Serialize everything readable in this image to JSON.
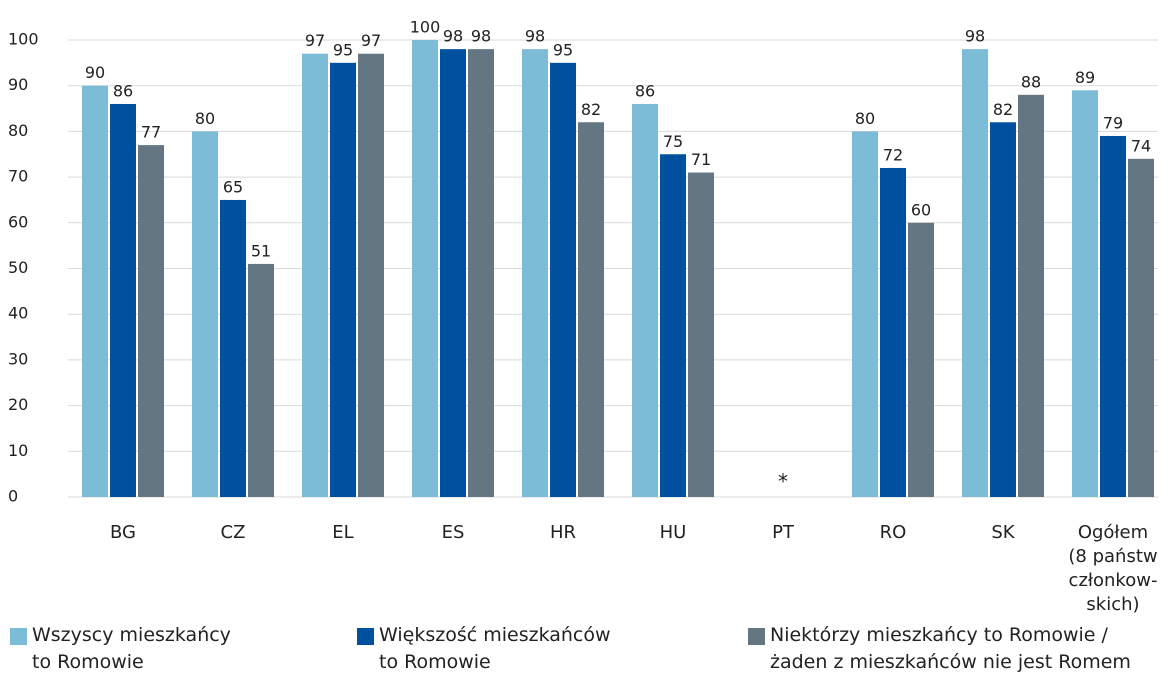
{
  "chart_data": {
    "type": "bar",
    "categories": [
      "BG",
      "CZ",
      "EL",
      "ES",
      "HR",
      "HU",
      "PT",
      "RO",
      "SK",
      "Ogółem\n(8 państw\nczłonkow-\nskich)"
    ],
    "series": [
      {
        "name": "Wszyscy mieszkańcy\nto Romowie",
        "color": "#7dbcd6",
        "values": [
          90,
          80,
          97,
          100,
          98,
          86,
          null,
          80,
          98,
          89
        ]
      },
      {
        "name": "Większość mieszkańców\nto Romowie",
        "color": "#0050a0",
        "values": [
          86,
          65,
          95,
          98,
          95,
          75,
          null,
          72,
          82,
          79
        ]
      },
      {
        "name": "Niektórzy mieszkańcy to Romowie /\nżaden z mieszkańców nie jest Romem",
        "color": "#647682",
        "values": [
          77,
          51,
          97,
          98,
          82,
          71,
          null,
          60,
          88,
          74
        ]
      }
    ],
    "annotations": [
      {
        "category": "PT",
        "text": "*"
      }
    ],
    "ylim": [
      0,
      100
    ],
    "yticks": [
      0,
      10,
      20,
      30,
      40,
      50,
      60,
      70,
      80,
      90,
      100
    ],
    "grid": true
  }
}
